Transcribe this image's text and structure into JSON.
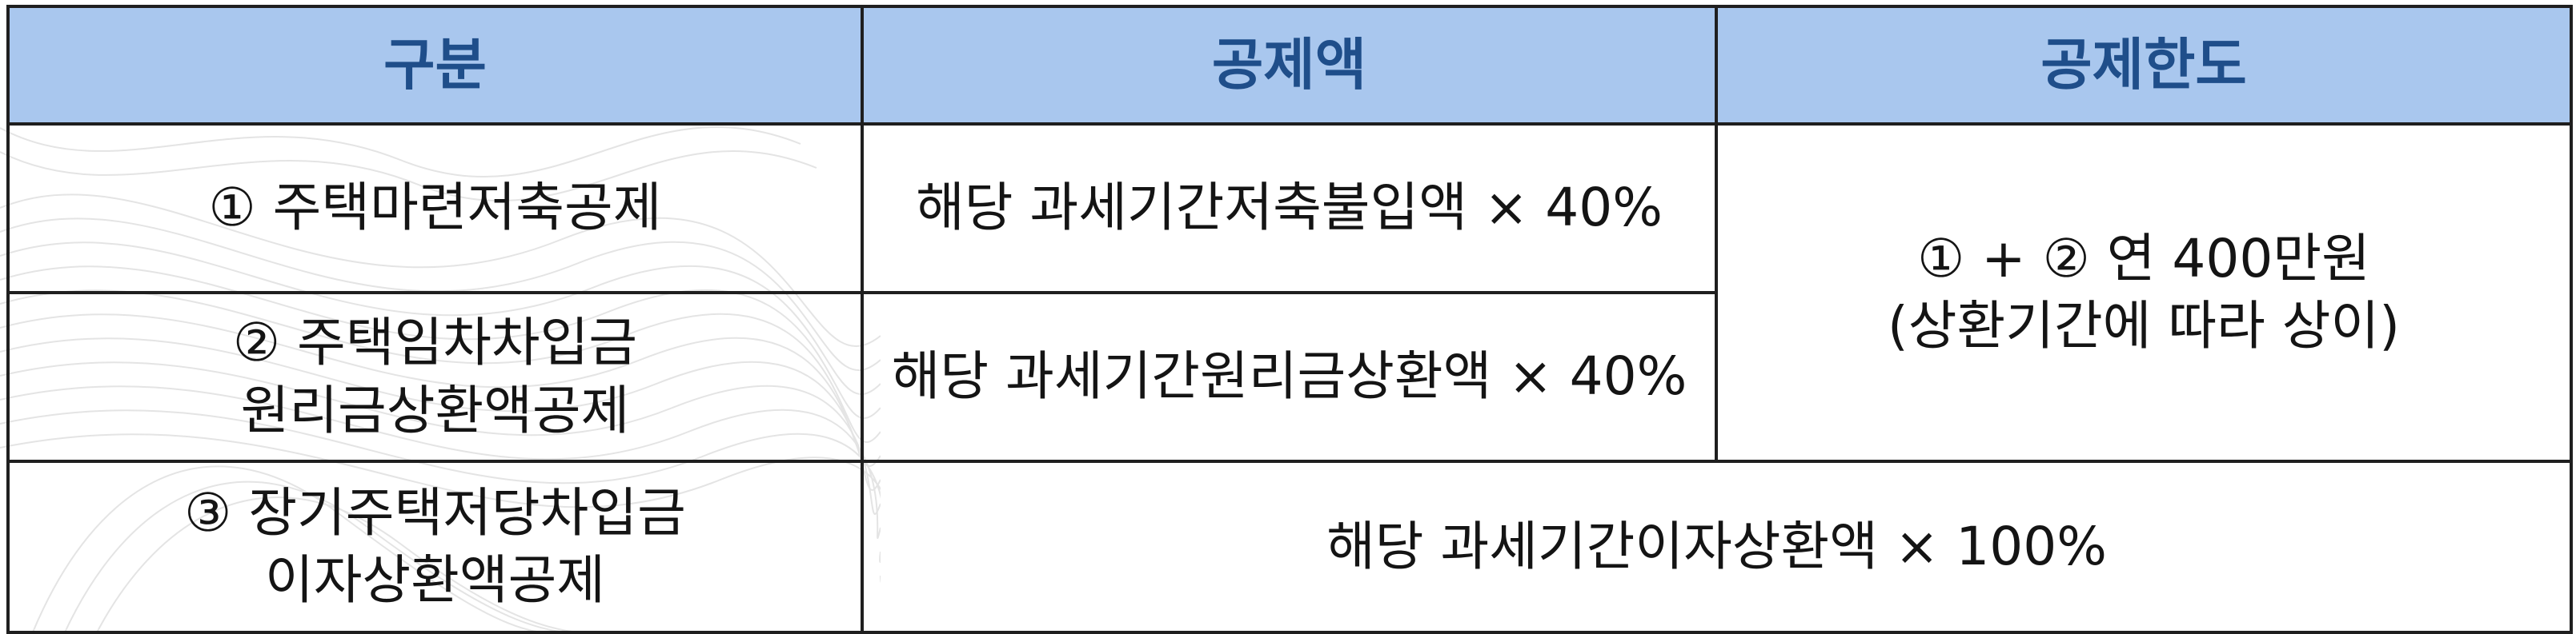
{
  "header": {
    "col1": "구분",
    "col2": "공제액",
    "col3": "공제한도"
  },
  "rows": [
    {
      "category": "① 주택마련저축공제",
      "amount": "해당 과세기간저축불입액 × 40%"
    },
    {
      "category_line1": "② 주택임차차입금",
      "category_line2": "원리금상환액공제",
      "amount": "해당 과세기간원리금상환액 × 40%"
    },
    {
      "category_line1": "③ 장기주택저당차입금",
      "category_line2": "이자상환액공제",
      "amount": "해당 과세기간이자상환액 × 100%"
    }
  ],
  "limit": {
    "line1": "① + ② 연 400만원",
    "line2": "(상환기간에 따라 상이)"
  }
}
